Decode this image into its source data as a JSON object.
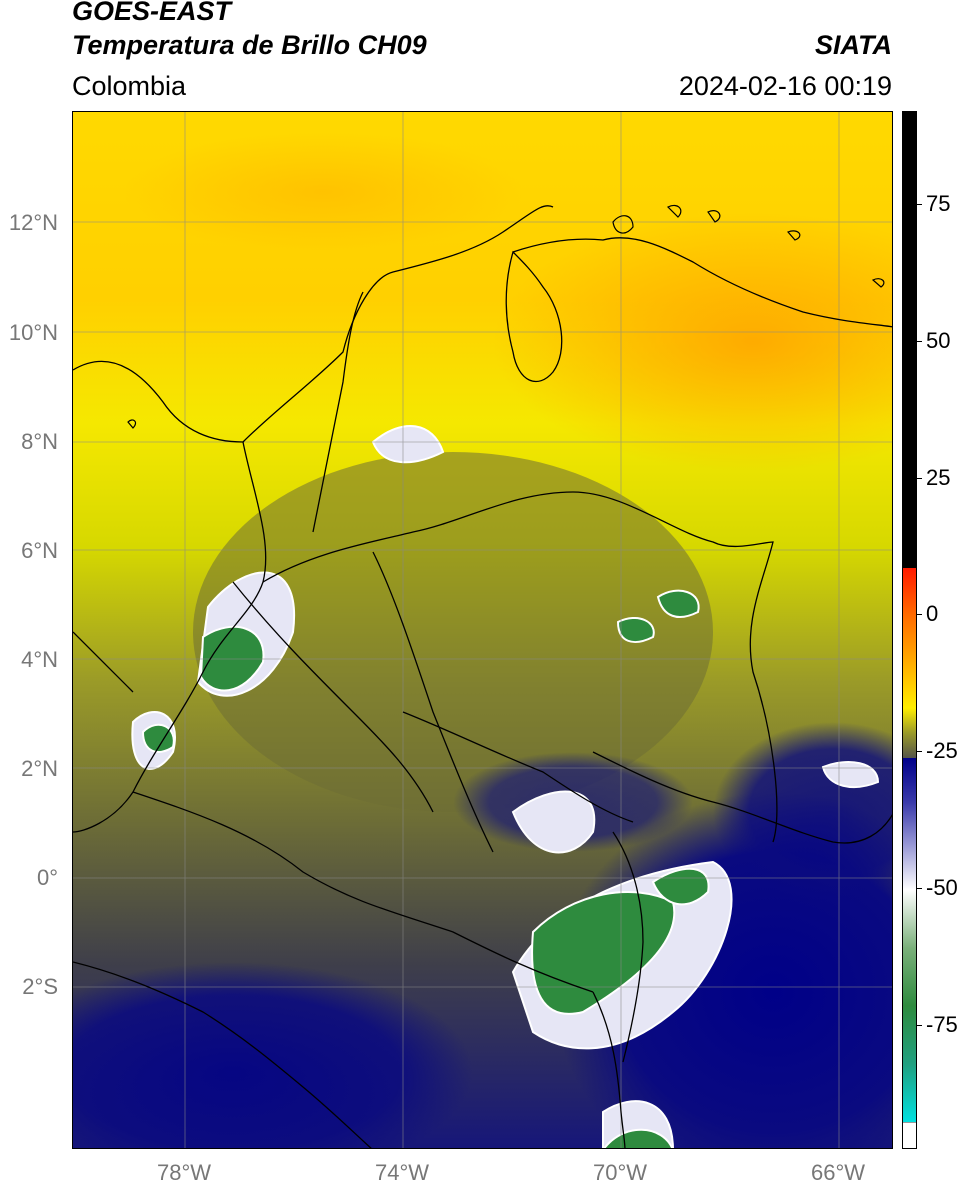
{
  "header": {
    "satellite": "GOES-EAST",
    "product": "Temperatura de Brillo CH09",
    "organization": "SIATA",
    "region": "Colombia",
    "timestamp": "2024-02-16 00:19"
  },
  "map": {
    "lat_labels": [
      "12°N",
      "10°N",
      "8°N",
      "6°N",
      "4°N",
      "2°N",
      "0°",
      "2°S"
    ],
    "lon_labels": [
      "78°W",
      "74°W",
      "70°W",
      "66°W"
    ]
  },
  "colorbar": {
    "tick_labels": [
      "75",
      "50",
      "25",
      "0",
      "-25",
      "-50",
      "-75"
    ],
    "colors": {
      "black": "#000000",
      "red": "#ff2000",
      "orange": "#ff9500",
      "yellow": "#ffee00",
      "olive": "#7a7a30",
      "gray": "#4a4a44",
      "navy": "#00008a",
      "white": "#ffffff",
      "green": "#2e8b3e",
      "cyan": "#00e0e0"
    }
  }
}
